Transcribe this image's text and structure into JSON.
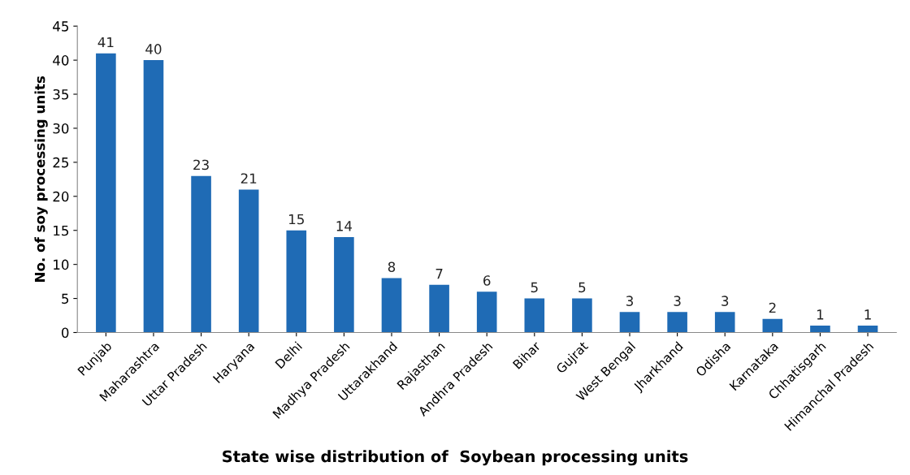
{
  "chart_data": {
    "type": "bar",
    "title": "State wise distribution of  Soybean processing units",
    "ylabel": "No. of soy processing units",
    "categories": [
      "Punjab",
      "Maharashtra",
      "Uttar Pradesh",
      "Haryana",
      "Delhi",
      "Madhya Pradesh",
      "Uttarakhand",
      "Rajasthan",
      "Andhra Pradesh",
      "Bihar",
      "Gujrat",
      "West Bengal",
      "Jharkhand",
      "Odisha",
      "Karnataka",
      "Chhatisgarh",
      "Himanchal Pradesh"
    ],
    "values": [
      41,
      40,
      23,
      21,
      15,
      14,
      8,
      7,
      6,
      5,
      5,
      3,
      3,
      3,
      2,
      1,
      1
    ],
    "color": "#1f6bb5",
    "ylim": [
      0,
      45
    ],
    "yticks": [
      0,
      5,
      10,
      15,
      20,
      25,
      30,
      35,
      40,
      45
    ],
    "grid": false,
    "data_labels": true
  }
}
